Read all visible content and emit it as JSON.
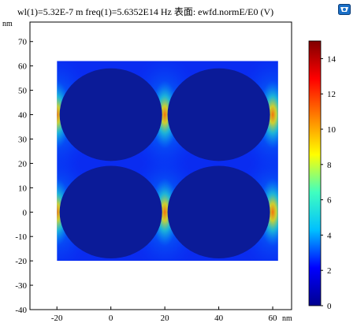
{
  "title": "wl(1)=5.32E-7 m freq(1)=5.6352E14 Hz 表面: ewfd.normE/E0 (V)",
  "logo_icon": "comsol-logo-icon",
  "chart_data": {
    "type": "heatmap",
    "title": "wl(1)=5.32E-7 m freq(1)=5.6352E14 Hz 表面: ewfd.normE/E0 (V)",
    "x_unit": "nm",
    "y_unit": "nm",
    "xlim": [
      -30,
      67
    ],
    "ylim": [
      -40,
      78
    ],
    "x_ticks": [
      -20,
      0,
      20,
      40,
      60
    ],
    "y_ticks": [
      -40,
      -30,
      -20,
      -10,
      0,
      10,
      20,
      30,
      40,
      50,
      60,
      70
    ],
    "domain": {
      "x": [
        -20,
        62
      ],
      "y": [
        -20,
        62
      ]
    },
    "particles": [
      {
        "cx": 0,
        "cy": 0,
        "r": 19
      },
      {
        "cx": 40,
        "cy": 0,
        "r": 19
      },
      {
        "cx": 0,
        "cy": 40,
        "r": 19
      },
      {
        "cx": 40,
        "cy": 40,
        "r": 19
      }
    ],
    "colorbar": {
      "min": 0,
      "max": 15,
      "ticks": [
        0,
        2,
        4,
        6,
        8,
        10,
        12,
        14
      ],
      "colormap": [
        "#00008f",
        "#0000ff",
        "#00c0ff",
        "#40ffbf",
        "#ffff00",
        "#ff8000",
        "#ff0000",
        "#800000"
      ]
    },
    "grid": false,
    "legend": "colorbar-right"
  }
}
